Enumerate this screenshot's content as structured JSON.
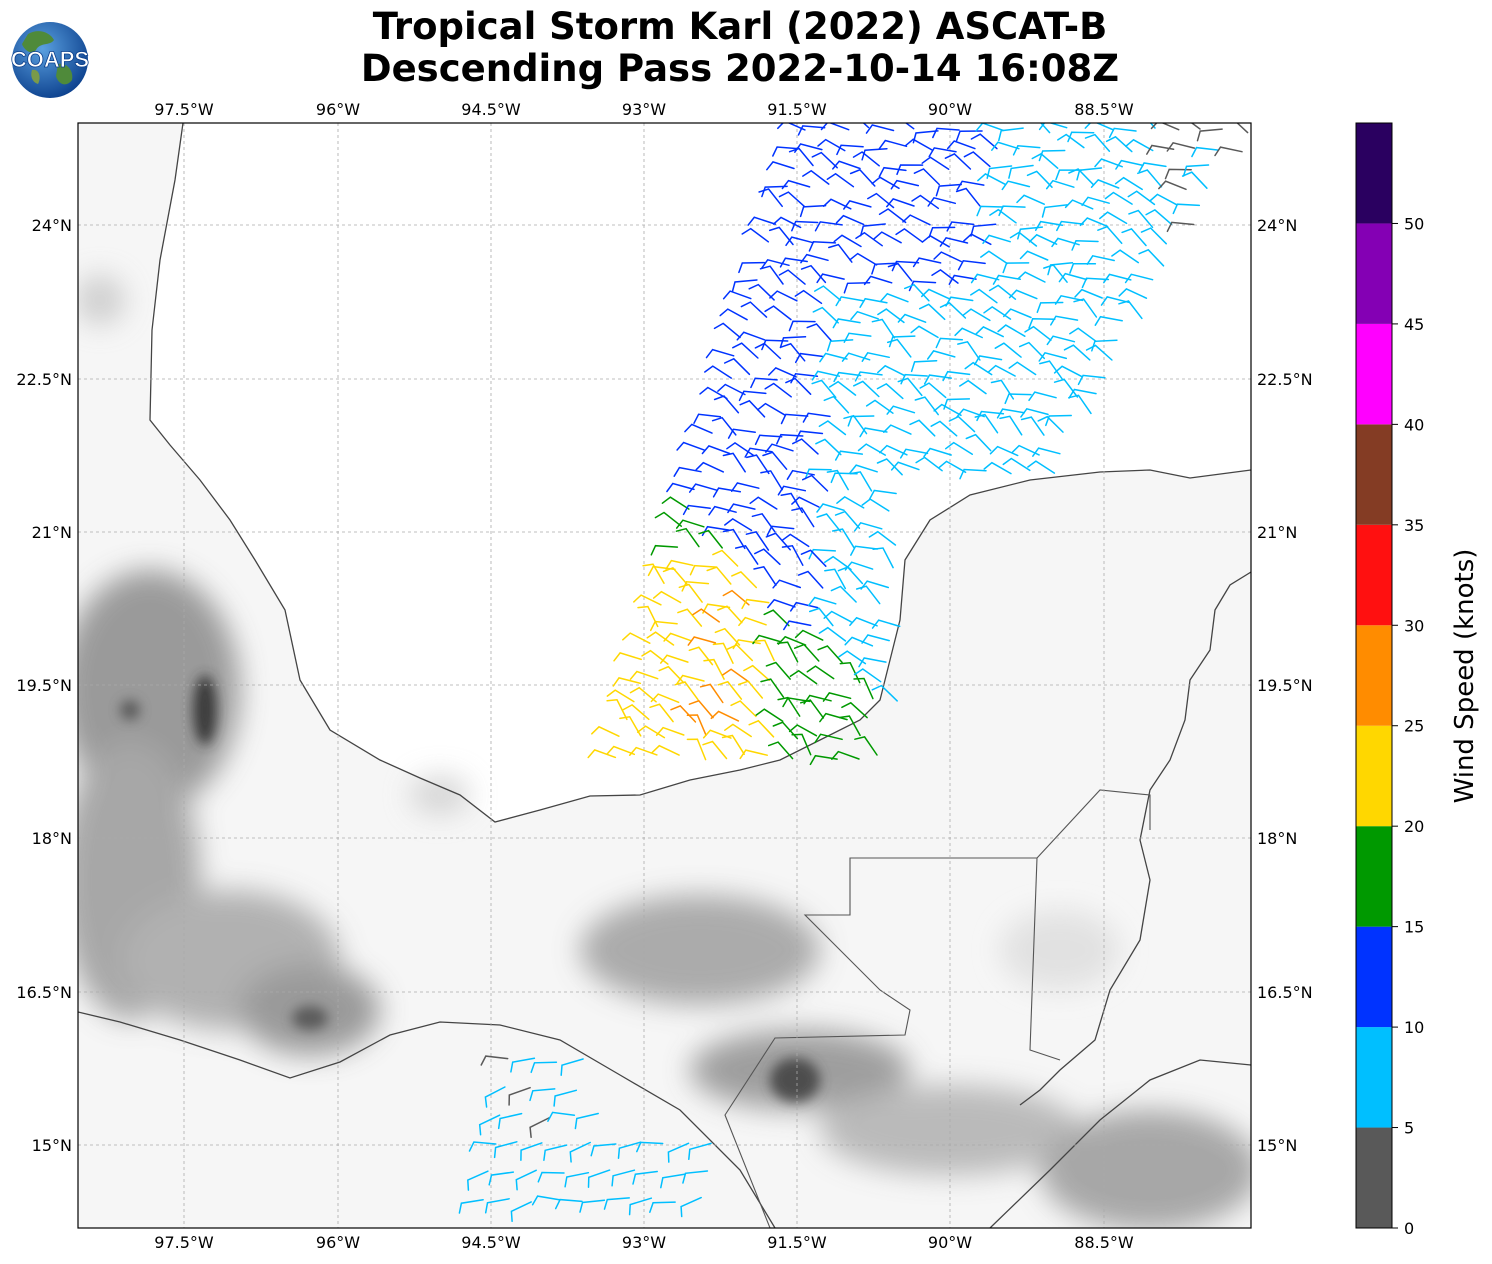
{
  "title": {
    "line1": "Tropical Storm Karl (2022) ASCAT-B",
    "line2": "Descending Pass 2022-10-14 16:08Z"
  },
  "logo": {
    "text": "COAPS",
    "icon": "globe-logo-icon"
  },
  "map": {
    "lon_ticks": [
      "97.5°W",
      "96°W",
      "94.5°W",
      "93°W",
      "91.5°W",
      "90°W",
      "88.5°W"
    ],
    "lat_ticks": [
      "24°N",
      "22.5°N",
      "21°N",
      "19.5°N",
      "18°N",
      "16.5°N",
      "15°N"
    ],
    "lon_values": [
      -97.5,
      -96,
      -94.5,
      -93,
      -91.5,
      -90,
      -88.5
    ],
    "lat_values": [
      24,
      22.5,
      21,
      19.5,
      18,
      16.5,
      15
    ],
    "extent": {
      "lon_min": -98.53,
      "lon_max": -87.07,
      "lat_min": 14.2,
      "lat_max": 25.0
    },
    "gridlines": true,
    "background": "grayscale topography"
  },
  "colorbar": {
    "label": "Wind Speed (knots)",
    "ticks": [
      "0",
      "5",
      "10",
      "15",
      "20",
      "25",
      "30",
      "35",
      "40",
      "45",
      "50"
    ],
    "bins": [
      {
        "min": 0,
        "max": 5,
        "color": "#595959"
      },
      {
        "min": 5,
        "max": 10,
        "color": "#00bfff"
      },
      {
        "min": 10,
        "max": 15,
        "color": "#0033ff"
      },
      {
        "min": 15,
        "max": 20,
        "color": "#009900"
      },
      {
        "min": 20,
        "max": 25,
        "color": "#ffd700"
      },
      {
        "min": 25,
        "max": 30,
        "color": "#ff8c00"
      },
      {
        "min": 30,
        "max": 35,
        "color": "#ff1010"
      },
      {
        "min": 35,
        "max": 40,
        "color": "#843c24"
      },
      {
        "min": 40,
        "max": 45,
        "color": "#ff00ff"
      },
      {
        "min": 45,
        "max": 50,
        "color": "#8400b4"
      },
      {
        "min": 50,
        "max": 55,
        "color": "#2a0060"
      }
    ]
  }
}
